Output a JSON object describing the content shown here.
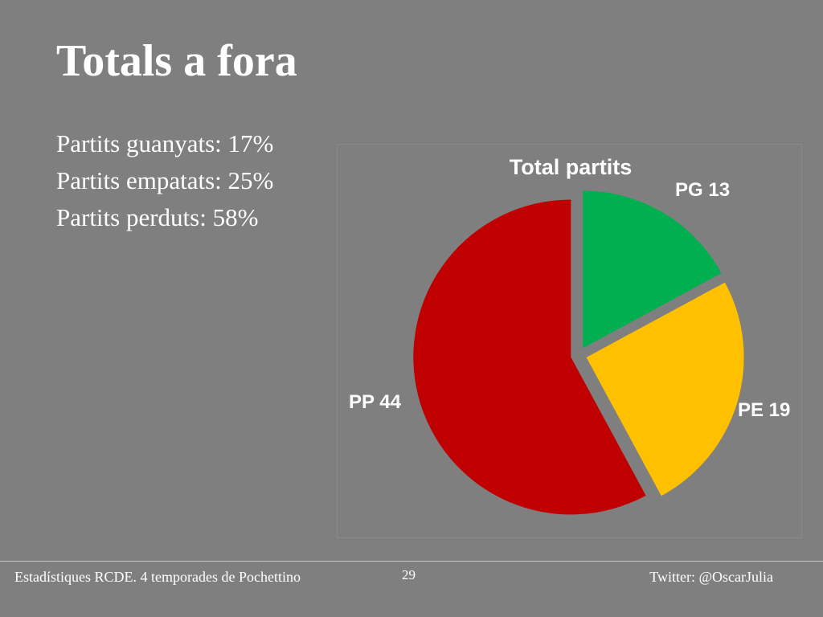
{
  "slide": {
    "title": "Totals a fora",
    "bullets": [
      "Partits guanyats: 17%",
      "Partits empatats: 25%",
      "Partits perduts: 58%"
    ]
  },
  "footer": {
    "left": "Estadístiques RCDE. 4 temporades de Pochettino",
    "page_number": "29",
    "right": "Twitter: @OscarJulia"
  },
  "chart_data": {
    "type": "pie",
    "title": "Total partits",
    "slices": [
      {
        "label": "PG 13",
        "value": 13,
        "color": "#00b050"
      },
      {
        "label": "PE 19",
        "value": 19,
        "color": "#ffc000"
      },
      {
        "label": "PP 44",
        "value": 44,
        "color": "#c00000"
      }
    ],
    "exploded": true,
    "legend": "none"
  }
}
